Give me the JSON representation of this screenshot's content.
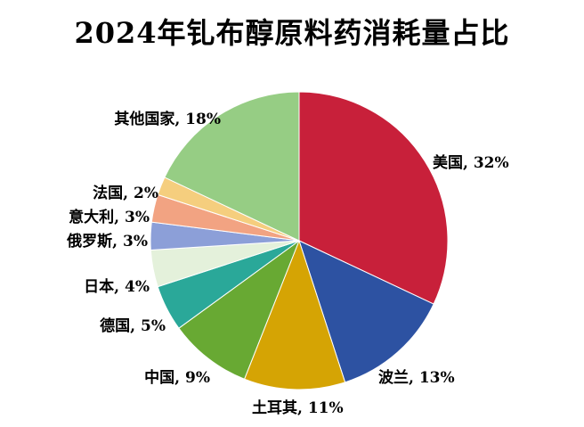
{
  "header": {
    "title": "2024年钆布醇原料药消耗量占比"
  },
  "chart_data": {
    "type": "pie",
    "title": "2024年钆布醇原料药消耗量占比",
    "start_angle_deg": 0,
    "direction": "clockwise",
    "legend_position": "none",
    "data_labels": "category_and_percent",
    "background_color": "#FFFFFF",
    "label_color": "#000000",
    "slices": [
      {
        "id": "usa",
        "label": "美国",
        "value": 32,
        "display": "美国, 32%",
        "color": "#C8203A"
      },
      {
        "id": "poland",
        "label": "波兰",
        "value": 13,
        "display": "波兰, 13%",
        "color": "#2D52A2"
      },
      {
        "id": "turkey",
        "label": "土耳其",
        "value": 11,
        "display": "土耳其, 11%",
        "color": "#D5A404"
      },
      {
        "id": "china",
        "label": "中国",
        "value": 9,
        "display": "中国, 9%",
        "color": "#68A933"
      },
      {
        "id": "germany",
        "label": "德国",
        "value": 5,
        "display": "德国, 5%",
        "color": "#2AA899"
      },
      {
        "id": "japan",
        "label": "日本",
        "value": 4,
        "display": "日本, 4%",
        "color": "#E4F1DB"
      },
      {
        "id": "russia",
        "label": "俄罗斯",
        "value": 3,
        "display": "俄罗斯, 3%",
        "color": "#8C9FD8"
      },
      {
        "id": "italy",
        "label": "意大利",
        "value": 3,
        "display": "意大利, 3%",
        "color": "#F2A382"
      },
      {
        "id": "france",
        "label": "法国",
        "value": 2,
        "display": "法国, 2%",
        "color": "#F5CE7E"
      },
      {
        "id": "others",
        "label": "其他国家",
        "value": 18,
        "display": "其他国家, 18%",
        "color": "#96CD84"
      }
    ]
  }
}
